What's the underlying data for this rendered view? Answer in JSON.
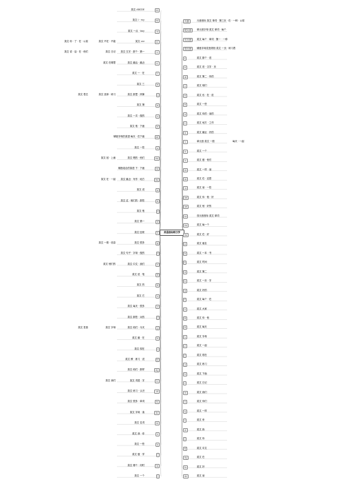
{
  "root": {
    "label": "英语音标和汉字"
  },
  "left_branches": [
    {
      "symbol": "eɪ",
      "text": "英文 ABCDE",
      "sub": []
    },
    {
      "symbol": "aɪ",
      "text": "英文 I · my",
      "sub": []
    },
    {
      "symbol": "ɔɪ",
      "text": "英文 一点 · boy",
      "sub": []
    },
    {
      "symbol": "ɑː",
      "text": "英文 car",
      "sub": [
        "英文 不在 · 不能",
        "英文 你 · 了 · 在 · 以前"
      ]
    },
    {
      "symbol": "ɜː",
      "text": "英文 汉字 · 那个 · 第一",
      "sub": [
        "英文 日记",
        "英文 说 · 话 · 在 · 他们"
      ]
    },
    {
      "symbol": "uː",
      "text": "英文 最后 · 最近",
      "sub": [
        "英文 在哪里"
      ]
    },
    {
      "symbol": "iː",
      "text": "英文 一 · 在",
      "sub": []
    },
    {
      "symbol": "ʊ",
      "text": "英文 三",
      "sub": []
    },
    {
      "symbol": "ɪ",
      "text": "英文 那里 · 风筝",
      "sub": [
        "英文 选择 · 练习",
        "英文 表达"
      ]
    },
    {
      "symbol": "ɒ",
      "text": "英文 第",
      "sub": []
    },
    {
      "symbol": "ʌ",
      "text": "英文 一次 · 做的",
      "sub": []
    },
    {
      "symbol": "e",
      "text": "英文 他 · 下面",
      "sub": []
    },
    {
      "symbol": "æ",
      "text": "辅音字母的英语 每天 · 在下面",
      "sub": []
    },
    {
      "symbol": "ə",
      "text": "英文 一些",
      "sub": []
    },
    {
      "symbol": "eə",
      "text": "英文 喝的 · 他们",
      "sub": [
        "英文 回 · 上面"
      ]
    },
    {
      "symbol": "ɪə",
      "text": "辅音组合的英语 下 · 下面",
      "sub": []
    },
    {
      "symbol": "ʊə",
      "text": "英文 最近 · 写作 · 地方",
      "sub": [
        "英文 在 · 一起"
      ]
    },
    {
      "symbol": "p",
      "text": "英文 说",
      "sub": []
    },
    {
      "symbol": "b",
      "text": "英文 这 · 他们的 · 那些",
      "sub": []
    },
    {
      "symbol": "t",
      "text": "英文 他",
      "sub": []
    },
    {
      "symbol": "d",
      "text": "英文 第一",
      "sub": []
    },
    {
      "symbol": "k",
      "text": "英文 回来",
      "sub": []
    },
    {
      "symbol": "g",
      "text": "英文 很多",
      "sub": [
        "英文 一般 · 信息"
      ]
    },
    {
      "symbol": "f",
      "text": "英文 句子 · 字母 · 做的",
      "sub": []
    },
    {
      "symbol": "v",
      "text": "英文 中文 · 我们",
      "sub": [
        "英文 他们的"
      ]
    },
    {
      "symbol": "θ",
      "text": "英文 说 · 笔",
      "sub": []
    },
    {
      "symbol": "ð",
      "text": "英文 的",
      "sub": []
    },
    {
      "symbol": "s",
      "text": "英文 它",
      "sub": []
    },
    {
      "symbol": "z",
      "text": "英文 每天 · 很多",
      "sub": []
    },
    {
      "symbol": "ʃ",
      "text": "英文 那些 · 对的",
      "sub": []
    },
    {
      "symbol": "ʒ",
      "text": "英文 他们 · 今天",
      "sub": [
        "英文 字母",
        "英文 发音"
      ]
    },
    {
      "symbol": "h",
      "text": "英文 最 · 在",
      "sub": []
    },
    {
      "symbol": "r",
      "text": "英文 现在",
      "sub": []
    },
    {
      "symbol": "tʃ",
      "text": "英文 教 · 练习 · 说",
      "sub": []
    },
    {
      "symbol": "dʒ",
      "text": "英文 他们 · 那样",
      "sub": []
    },
    {
      "symbol": "tr",
      "text": "英文 词语 · 字",
      "sub": [
        "英文 我们"
      ]
    },
    {
      "symbol": "dr",
      "text": "英文 练习 · 认识",
      "sub": []
    },
    {
      "symbol": "ts",
      "text": "英文 很多 · 单词",
      "sub": []
    },
    {
      "symbol": "dz",
      "text": "英文 字母 · 读",
      "sub": []
    },
    {
      "symbol": "m",
      "text": "英文 名词",
      "sub": []
    },
    {
      "symbol": "n",
      "text": "英文 我 · 你",
      "sub": []
    },
    {
      "symbol": "ŋ",
      "text": "英文 一些",
      "sub": []
    },
    {
      "symbol": "l",
      "text": "英文 做 · 学",
      "sub": []
    },
    {
      "symbol": "w",
      "text": "英文 哪个 · 何时",
      "sub": []
    },
    {
      "symbol": "j",
      "text": "英文 一个",
      "sub": []
    }
  ],
  "right_branches": [
    {
      "symbol": "元音",
      "text": "元音音标 英文 单词 · 第三页 · 在 · 一种 · 以前",
      "sub": []
    },
    {
      "symbol": "短元音",
      "text": "单元音字母 英文 单词 · 每个",
      "sub": []
    },
    {
      "symbol": "长元音",
      "text": "英文 每个 · 单词 · 第一 · 一种",
      "sub": []
    },
    {
      "symbol": "双元音",
      "text": "辅音字母发音规则 英文 一页 · 练习表",
      "sub": []
    },
    {
      "symbol": "ɪ",
      "text": "英文 那个 · 说",
      "sub": []
    },
    {
      "symbol": "e",
      "text": "英文 说 · 汉字 · 页",
      "sub": []
    },
    {
      "symbol": "æ",
      "text": "英文 第二 · 你的",
      "sub": []
    },
    {
      "symbol": "ʌ",
      "text": "英文 他们",
      "sub": []
    },
    {
      "symbol": "ɒ",
      "text": "英文 也 · 在 · 说",
      "sub": []
    },
    {
      "symbol": "ʊ",
      "text": "英文 一些",
      "sub": []
    },
    {
      "symbol": "ə",
      "text": "英文 你的 · 读的",
      "sub": []
    },
    {
      "symbol": "iː",
      "text": "英文 地方 · 工作",
      "sub": []
    },
    {
      "symbol": "ɑː",
      "text": "英文 最近 · 好的",
      "sub": []
    },
    {
      "symbol": "ɔː",
      "text": "单元音 英文 一般",
      "sub": [
        "每天 · 一起"
      ]
    },
    {
      "symbol": "uː",
      "text": "英文 一个",
      "sub": []
    },
    {
      "symbol": "ɜː",
      "text": "英文 做 · 他们",
      "sub": []
    },
    {
      "symbol": "eɪ",
      "text": "英文 一样 · 读",
      "sub": []
    },
    {
      "symbol": "aɪ",
      "text": "英文 在 · 这是",
      "sub": []
    },
    {
      "symbol": "ɔɪ",
      "text": "英文 读 · 一些",
      "sub": []
    },
    {
      "symbol": "aʊ",
      "text": "英文 你 · 他 · 好",
      "sub": []
    },
    {
      "symbol": "əʊ",
      "text": "英文 他 · 好的",
      "sub": []
    },
    {
      "symbol": "ɪə",
      "text": "双元音音标 英文 单词",
      "sub": []
    },
    {
      "symbol": "eə",
      "text": "英文 每一个",
      "sub": []
    },
    {
      "symbol": "ʊə",
      "text": "英文 在 · 好",
      "sub": []
    },
    {
      "symbol": "p",
      "text": "英文 朋友",
      "sub": []
    },
    {
      "symbol": "b",
      "text": "英文 一本 · 书",
      "sub": []
    },
    {
      "symbol": "t",
      "text": "英文 时间",
      "sub": []
    },
    {
      "symbol": "d",
      "text": "英文 第二",
      "sub": []
    },
    {
      "symbol": "k",
      "text": "英文 一页 · 字",
      "sub": []
    },
    {
      "symbol": "g",
      "text": "英文 好的",
      "sub": []
    },
    {
      "symbol": "f",
      "text": "英文 每个 · 在",
      "sub": []
    },
    {
      "symbol": "v",
      "text": "英文 大家",
      "sub": []
    },
    {
      "symbol": "θ",
      "text": "英文 你 · 他",
      "sub": []
    },
    {
      "symbol": "ð",
      "text": "英文 每天",
      "sub": []
    },
    {
      "symbol": "s",
      "text": "英文 字母",
      "sub": []
    },
    {
      "symbol": "z",
      "text": "英文 一起",
      "sub": []
    },
    {
      "symbol": "ʃ",
      "text": "英文 现在",
      "sub": []
    },
    {
      "symbol": "ʒ",
      "text": "英文 练习",
      "sub": []
    },
    {
      "symbol": "h",
      "text": "英文 下面",
      "sub": []
    },
    {
      "symbol": "r",
      "text": "英文 日记",
      "sub": []
    },
    {
      "symbol": "m",
      "text": "英文 我们",
      "sub": []
    },
    {
      "symbol": "n",
      "text": "英文 你们",
      "sub": []
    },
    {
      "symbol": "ŋ",
      "text": "英文 一样",
      "sub": []
    },
    {
      "symbol": "l",
      "text": "英文 来",
      "sub": []
    },
    {
      "symbol": "w",
      "text": "英文 我",
      "sub": []
    },
    {
      "symbol": "j",
      "text": "英文 你",
      "sub": []
    },
    {
      "symbol": "tʃ",
      "text": "英文 中文",
      "sub": []
    },
    {
      "symbol": "dʒ",
      "text": "英文 在",
      "sub": []
    },
    {
      "symbol": "ts",
      "text": "英文 好",
      "sub": []
    },
    {
      "symbol": "dz",
      "text": "英文 读",
      "sub": []
    }
  ]
}
